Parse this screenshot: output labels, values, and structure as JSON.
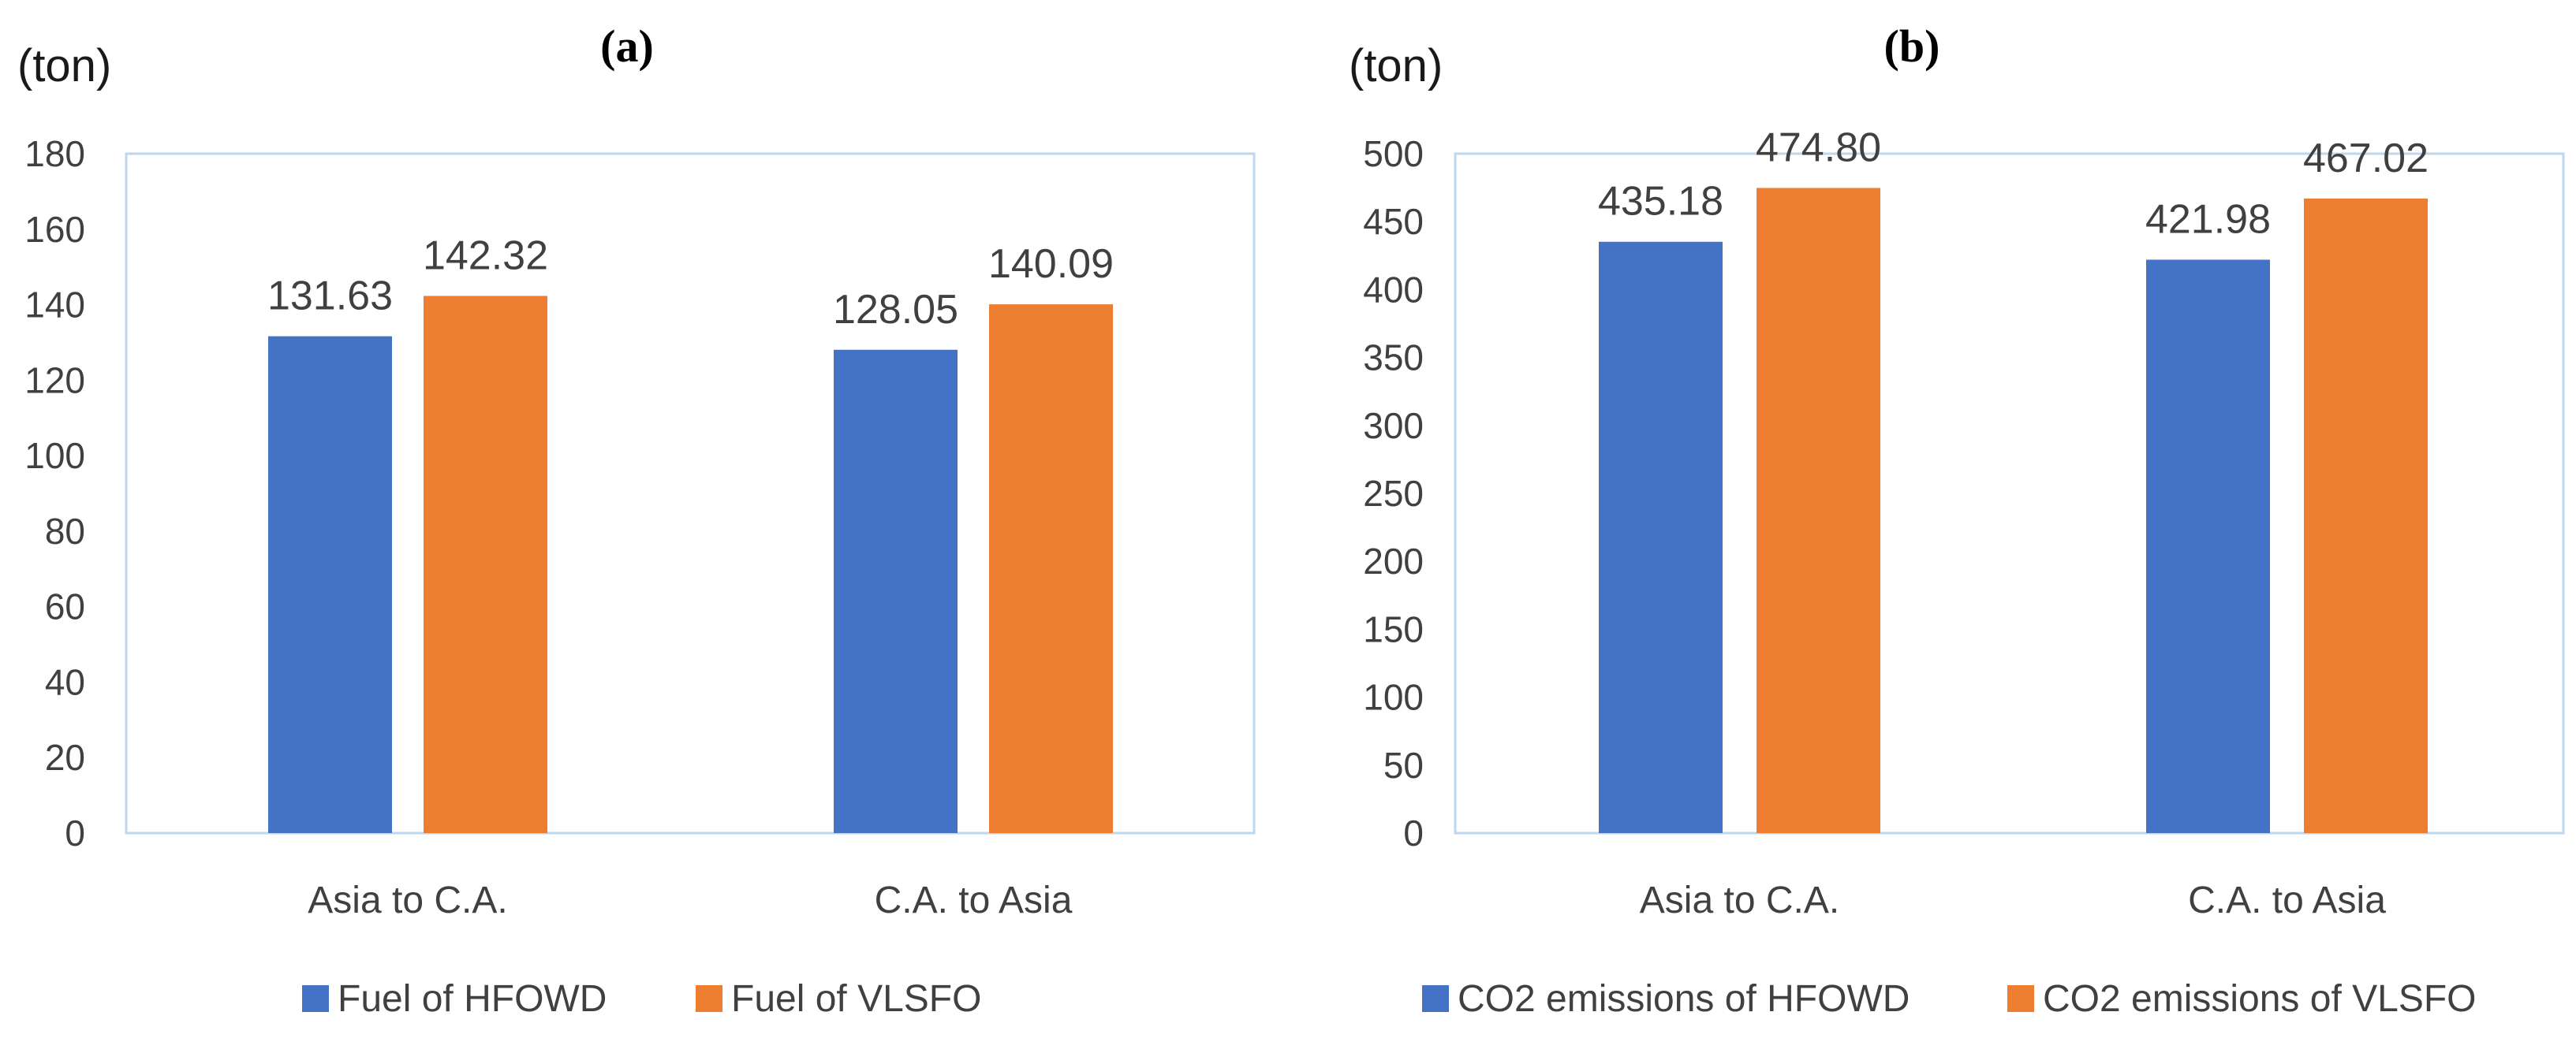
{
  "colors": {
    "series_a": "#4472C4",
    "series_b": "#ED7D31",
    "frame": "#BDD7EE"
  },
  "chart_data": [
    {
      "type": "bar",
      "panel_label": "(a)",
      "unit_label": "(ton)",
      "categories": [
        "Asia to C.A.",
        "C.A. to Asia"
      ],
      "series": [
        {
          "name": "Fuel of HFOWD",
          "values": [
            131.63,
            128.05
          ],
          "labels": [
            "131.63",
            "128.05"
          ]
        },
        {
          "name": "Fuel of VLSFO",
          "values": [
            142.32,
            140.09
          ],
          "labels": [
            "142.32",
            "140.09"
          ]
        }
      ],
      "ylim": [
        0,
        180
      ],
      "yticks": [
        "0",
        "20",
        "40",
        "60",
        "80",
        "100",
        "120",
        "140",
        "160",
        "180"
      ],
      "legend": "bottom"
    },
    {
      "type": "bar",
      "panel_label": "(b)",
      "unit_label": "(ton)",
      "categories": [
        "Asia to C.A.",
        "C.A. to Asia"
      ],
      "series": [
        {
          "name": "CO2 emissions of HFOWD",
          "values": [
            435.18,
            421.98
          ],
          "labels": [
            "435.18",
            "421.98"
          ]
        },
        {
          "name": "CO2 emissions of VLSFO",
          "values": [
            474.8,
            467.02
          ],
          "labels": [
            "474.80",
            "467.02"
          ]
        }
      ],
      "ylim": [
        0,
        500
      ],
      "yticks": [
        "0",
        "50",
        "100",
        "150",
        "200",
        "250",
        "300",
        "350",
        "400",
        "450",
        "500"
      ],
      "legend": "bottom"
    }
  ]
}
